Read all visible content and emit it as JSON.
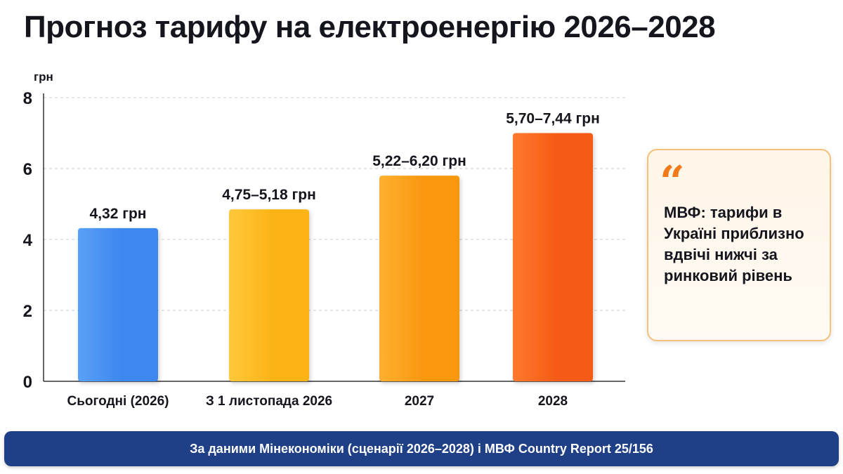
{
  "title": "Прогноз тарифу на електроенергію 2026–2028",
  "chart_data": {
    "type": "bar",
    "title": "",
    "ylabel": "грн",
    "xlabel": "",
    "ylim": [
      0,
      8
    ],
    "yticks": [
      0,
      2,
      4,
      6,
      8
    ],
    "grid": true,
    "categories": [
      "Сьогодні (2026)",
      "З 1 листопада 2026",
      "2027",
      "2028"
    ],
    "values": [
      4.32,
      4.85,
      5.8,
      7.0
    ],
    "data_labels": [
      "4,32 грн",
      "4,75–5,18 грн",
      "5,22–6,20 грн",
      "5,70–7,44 грн"
    ],
    "colors": [
      "#3d87ef",
      "#fbb316",
      "#f99710",
      "#f55a14"
    ],
    "colors_light": [
      "#5aa0f7",
      "#ffc93a",
      "#ffb030",
      "#ff7a2e"
    ]
  },
  "callout": {
    "quote_icon": "quote-icon",
    "text": "МВФ: тарифи в Україні приблизно вдвічі нижчі за ринковий рівень"
  },
  "footer": {
    "text": "За даними Мінекономіки (сценарії 2026–2028) і МВФ Country Report 25/156"
  }
}
